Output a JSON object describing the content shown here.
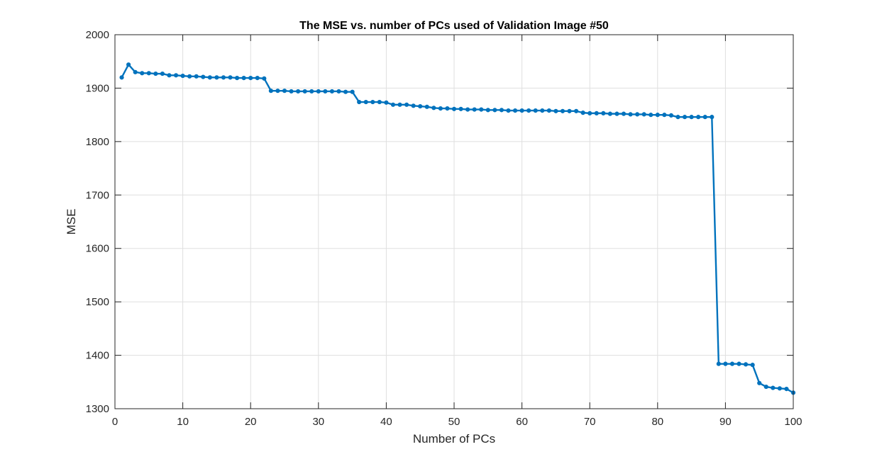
{
  "chart_data": {
    "type": "line",
    "title": "The MSE vs. number of PCs used of Validation Image #50",
    "xlabel": "Number of PCs",
    "ylabel": "MSE",
    "xlim": [
      0,
      100
    ],
    "ylim": [
      1300,
      2000
    ],
    "xticks": [
      0,
      10,
      20,
      30,
      40,
      50,
      60,
      70,
      80,
      90,
      100
    ],
    "yticks": [
      1300,
      1400,
      1500,
      1600,
      1700,
      1800,
      1900,
      2000
    ],
    "xtick_labels": [
      "0",
      "10",
      "20",
      "30",
      "40",
      "50",
      "60",
      "70",
      "80",
      "90",
      "100"
    ],
    "ytick_labels": [
      "1300",
      "1400",
      "1500",
      "1600",
      "1700",
      "1800",
      "1900",
      "2000"
    ],
    "grid": true,
    "series": [
      {
        "color": "#0072BD",
        "marker": "circle",
        "x": [
          1,
          2,
          3,
          4,
          5,
          6,
          7,
          8,
          9,
          10,
          11,
          12,
          13,
          14,
          15,
          16,
          17,
          18,
          19,
          20,
          21,
          22,
          23,
          24,
          25,
          26,
          27,
          28,
          29,
          30,
          31,
          32,
          33,
          34,
          35,
          36,
          37,
          38,
          39,
          40,
          41,
          42,
          43,
          44,
          45,
          46,
          47,
          48,
          49,
          50,
          51,
          52,
          53,
          54,
          55,
          56,
          57,
          58,
          59,
          60,
          61,
          62,
          63,
          64,
          65,
          66,
          67,
          68,
          69,
          70,
          71,
          72,
          73,
          74,
          75,
          76,
          77,
          78,
          79,
          80,
          81,
          82,
          83,
          84,
          85,
          86,
          87,
          88,
          89,
          90,
          91,
          92,
          93,
          94,
          95,
          96,
          97,
          98,
          99,
          100
        ],
        "y": [
          1920,
          1944,
          1930,
          1928,
          1928,
          1927,
          1927,
          1924,
          1924,
          1923,
          1922,
          1922,
          1921,
          1920,
          1920,
          1920,
          1920,
          1919,
          1919,
          1919,
          1919,
          1918,
          1895,
          1895,
          1895,
          1894,
          1894,
          1894,
          1894,
          1894,
          1894,
          1894,
          1894,
          1893,
          1893,
          1874,
          1874,
          1874,
          1874,
          1873,
          1869,
          1869,
          1869,
          1867,
          1866,
          1865,
          1863,
          1862,
          1862,
          1861,
          1861,
          1860,
          1860,
          1860,
          1859,
          1859,
          1859,
          1858,
          1858,
          1858,
          1858,
          1858,
          1858,
          1858,
          1857,
          1857,
          1857,
          1857,
          1854,
          1853,
          1853,
          1853,
          1852,
          1852,
          1852,
          1851,
          1851,
          1851,
          1850,
          1850,
          1850,
          1849,
          1846,
          1846,
          1846,
          1846,
          1846,
          1846,
          1384,
          1384,
          1384,
          1384,
          1383,
          1382,
          1348,
          1341,
          1339,
          1338,
          1337,
          1330
        ]
      }
    ]
  }
}
